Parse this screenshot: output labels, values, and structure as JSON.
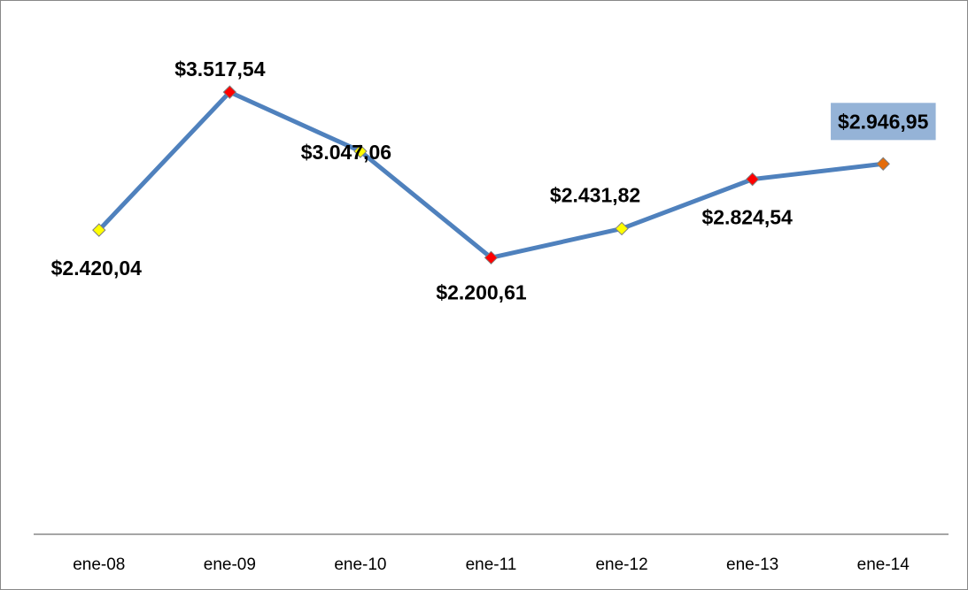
{
  "chart_data": {
    "type": "line",
    "categories": [
      "ene-08",
      "ene-09",
      "ene-10",
      "ene-11",
      "ene-12",
      "ene-13",
      "ene-14"
    ],
    "series": [
      {
        "color": "#4f81bd",
        "values": [
          2420.04,
          3517.54,
          3047.06,
          2200.61,
          2431.82,
          2824.54,
          2946.95
        ],
        "value_labels": [
          "$2.420,04",
          "$3.517,54",
          "$3.047,06",
          "$2.200,61",
          "$2.431,82",
          "$2.824,54",
          "$2.946,95"
        ],
        "marker_colors": [
          "#ffff00",
          "#ff0000",
          "#ffff00",
          "#ff0000",
          "#ffff00",
          "#ff0000",
          "#e46c0a"
        ]
      }
    ],
    "ylim": [
      0,
      4000
    ],
    "highlight_index": 6,
    "highlight_label_color": "#ff0000",
    "highlight_label_background": "#95b3d7"
  }
}
